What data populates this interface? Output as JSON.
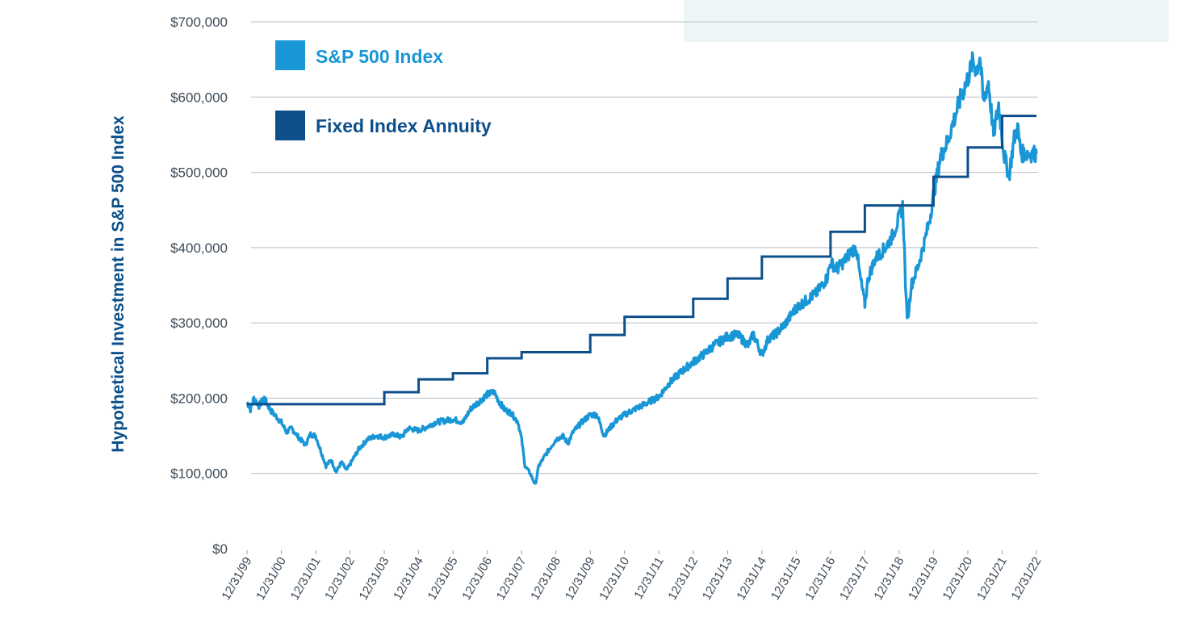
{
  "chart_data": {
    "type": "line",
    "title": "",
    "xlabel": "",
    "ylabel": "Hypothetical Investment in S&P 500 Index",
    "ylim": [
      0,
      700000
    ],
    "y_ticks": [
      0,
      100000,
      200000,
      300000,
      400000,
      500000,
      600000,
      700000
    ],
    "y_tick_labels": [
      "$0",
      "$100,000",
      "$200,000",
      "$300,000",
      "$400,000",
      "$500,000",
      "$600,000",
      "$700,000"
    ],
    "x_tick_labels": [
      "12/31/99",
      "12/31/00",
      "12/31/01",
      "12/31/02",
      "12/31/03",
      "12/31/04",
      "12/31/05",
      "12/31/06",
      "12/31/07",
      "12/31/08",
      "12/31/09",
      "12/31/10",
      "12/31/11",
      "12/31/12",
      "12/31/13",
      "12/31/14",
      "12/31/15",
      "12/31/16",
      "12/31/17",
      "12/31/18",
      "12/31/19",
      "12/31/20",
      "12/31/21",
      "12/31/22"
    ],
    "xlim": [
      0,
      23
    ],
    "grid": true,
    "legend_position": "top-left",
    "colors": {
      "sp500": "#1996d5",
      "fia": "#0c4f8a",
      "panel": "#eef5f9",
      "grid": "#b9bec4"
    },
    "series": [
      {
        "name": "S&P 500 Index",
        "kind": "line",
        "points": [
          [
            0,
            195000
          ],
          [
            0.1,
            185000
          ],
          [
            0.2,
            200000
          ],
          [
            0.35,
            190000
          ],
          [
            0.5,
            200000
          ],
          [
            0.7,
            183000
          ],
          [
            1.0,
            168000
          ],
          [
            1.15,
            155000
          ],
          [
            1.3,
            160000
          ],
          [
            1.5,
            148000
          ],
          [
            1.7,
            138000
          ],
          [
            1.85,
            152000
          ],
          [
            2.0,
            150000
          ],
          [
            2.15,
            130000
          ],
          [
            2.3,
            110000
          ],
          [
            2.45,
            118000
          ],
          [
            2.6,
            102000
          ],
          [
            2.75,
            115000
          ],
          [
            2.9,
            104000
          ],
          [
            3.0,
            112000
          ],
          [
            3.25,
            132000
          ],
          [
            3.5,
            145000
          ],
          [
            3.75,
            150000
          ],
          [
            4.0,
            148000
          ],
          [
            4.3,
            152000
          ],
          [
            4.5,
            148000
          ],
          [
            4.7,
            160000
          ],
          [
            5.0,
            157000
          ],
          [
            5.25,
            162000
          ],
          [
            5.5,
            168000
          ],
          [
            6.0,
            172000
          ],
          [
            6.3,
            168000
          ],
          [
            6.5,
            185000
          ],
          [
            6.75,
            195000
          ],
          [
            7.0,
            205000
          ],
          [
            7.2,
            208000
          ],
          [
            7.35,
            195000
          ],
          [
            7.5,
            185000
          ],
          [
            7.7,
            180000
          ],
          [
            7.9,
            168000
          ],
          [
            8.0,
            145000
          ],
          [
            8.1,
            110000
          ],
          [
            8.25,
            100000
          ],
          [
            8.4,
            85000
          ],
          [
            8.5,
            110000
          ],
          [
            8.7,
            125000
          ],
          [
            9.0,
            145000
          ],
          [
            9.2,
            150000
          ],
          [
            9.35,
            140000
          ],
          [
            9.5,
            155000
          ],
          [
            9.75,
            168000
          ],
          [
            10.0,
            178000
          ],
          [
            10.2,
            178000
          ],
          [
            10.4,
            150000
          ],
          [
            10.6,
            162000
          ],
          [
            10.8,
            172000
          ],
          [
            11.0,
            178000
          ],
          [
            11.2,
            183000
          ],
          [
            11.5,
            190000
          ],
          [
            12.0,
            202000
          ],
          [
            12.3,
            220000
          ],
          [
            12.6,
            233000
          ],
          [
            13.0,
            248000
          ],
          [
            13.3,
            258000
          ],
          [
            13.6,
            270000
          ],
          [
            14.0,
            282000
          ],
          [
            14.3,
            284000
          ],
          [
            14.6,
            270000
          ],
          [
            14.75,
            285000
          ],
          [
            15.0,
            258000
          ],
          [
            15.2,
            280000
          ],
          [
            15.4,
            285000
          ],
          [
            15.7,
            300000
          ],
          [
            16.0,
            320000
          ],
          [
            16.3,
            330000
          ],
          [
            16.6,
            340000
          ],
          [
            16.9,
            360000
          ],
          [
            17.0,
            380000
          ],
          [
            17.2,
            372000
          ],
          [
            17.4,
            382000
          ],
          [
            17.6,
            395000
          ],
          [
            17.75,
            400000
          ],
          [
            17.85,
            365000
          ],
          [
            18.0,
            325000
          ],
          [
            18.1,
            360000
          ],
          [
            18.3,
            385000
          ],
          [
            18.6,
            400000
          ],
          [
            18.8,
            415000
          ],
          [
            19.0,
            440000
          ],
          [
            19.1,
            455000
          ],
          [
            19.15,
            400000
          ],
          [
            19.2,
            330000
          ],
          [
            19.25,
            305000
          ],
          [
            19.35,
            350000
          ],
          [
            19.55,
            375000
          ],
          [
            19.75,
            410000
          ],
          [
            19.9,
            440000
          ],
          [
            20.0,
            470000
          ],
          [
            20.2,
            520000
          ],
          [
            20.4,
            540000
          ],
          [
            20.6,
            570000
          ],
          [
            20.8,
            600000
          ],
          [
            21.0,
            625000
          ],
          [
            21.15,
            648000
          ],
          [
            21.25,
            635000
          ],
          [
            21.35,
            655000
          ],
          [
            21.45,
            595000
          ],
          [
            21.6,
            620000
          ],
          [
            21.75,
            550000
          ],
          [
            21.9,
            590000
          ],
          [
            22.05,
            525000
          ],
          [
            22.2,
            495000
          ],
          [
            22.35,
            545000
          ],
          [
            22.45,
            560000
          ],
          [
            22.55,
            525000
          ],
          [
            23.0,
            525000
          ]
        ]
      },
      {
        "name": "Fixed Index Annuity",
        "kind": "step",
        "points": [
          [
            0,
            192000
          ],
          [
            4,
            208000
          ],
          [
            5,
            225000
          ],
          [
            6,
            233000
          ],
          [
            7,
            253000
          ],
          [
            8,
            261000
          ],
          [
            10,
            284000
          ],
          [
            11,
            308000
          ],
          [
            13,
            332000
          ],
          [
            14,
            359000
          ],
          [
            15,
            388000
          ],
          [
            17,
            421000
          ],
          [
            18,
            456000
          ],
          [
            20,
            494000
          ],
          [
            21,
            533000
          ],
          [
            22,
            575000
          ],
          [
            23,
            575000
          ]
        ]
      }
    ]
  }
}
